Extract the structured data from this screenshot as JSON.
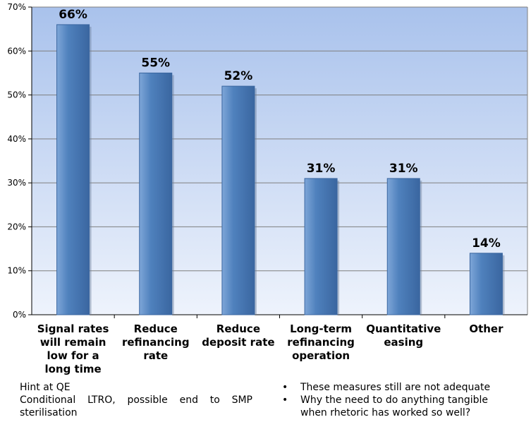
{
  "chart_data": {
    "type": "bar",
    "categories": [
      [
        "Signal rates",
        "will remain",
        "low for a",
        "long time"
      ],
      [
        "Reduce",
        "refinancing",
        "rate"
      ],
      [
        "Reduce",
        "deposit rate"
      ],
      [
        "Long-term",
        "refinancing",
        "operation"
      ],
      [
        "Quantitative",
        "easing"
      ],
      [
        "Other"
      ]
    ],
    "values": [
      66,
      55,
      52,
      31,
      31,
      14
    ],
    "data_labels": [
      "66%",
      "55%",
      "52%",
      "31%",
      "31%",
      "14%"
    ],
    "yticks": [
      "0%",
      "10%",
      "20%",
      "30%",
      "40%",
      "50%",
      "60%",
      "70%"
    ],
    "ylim": [
      0,
      70
    ],
    "grid": true,
    "colors": {
      "bar": "#4f81bd",
      "bar_light": "#7ea6d8",
      "bar_dark": "#3a66a0",
      "plot_top": "#a9c2ec",
      "plot_bottom": "#eef3fc",
      "grid": "#7f7f7f"
    }
  },
  "notes": {
    "left": [
      "Hint at QE",
      "Conditional LTRO, possible end to SMP",
      "sterilisation"
    ],
    "right": [
      {
        "bullet": "•",
        "lines": [
          "These measures still are not adequate"
        ]
      },
      {
        "bullet": "•",
        "lines": [
          "Why the need to do anything tangible",
          "when rhetoric has worked so well?"
        ]
      }
    ]
  }
}
